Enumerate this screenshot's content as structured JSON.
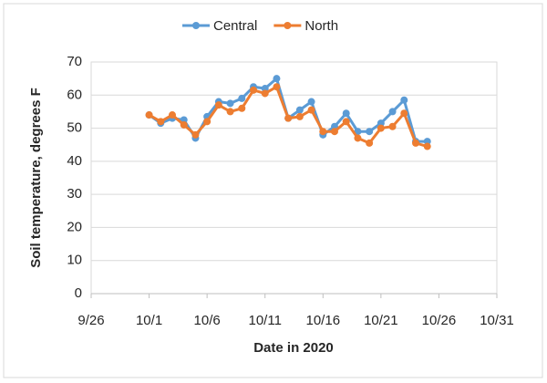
{
  "chart_data": {
    "type": "line",
    "x_label": "Date in 2020",
    "y_label": "Soil temperature, degrees F",
    "x": [
      "10/1",
      "10/2",
      "10/3",
      "10/4",
      "10/5",
      "10/6",
      "10/7",
      "10/8",
      "10/9",
      "10/10",
      "10/11",
      "10/12",
      "10/13",
      "10/14",
      "10/15",
      "10/16",
      "10/17",
      "10/18",
      "10/19",
      "10/20",
      "10/21",
      "10/22",
      "10/23",
      "10/24",
      "10/25"
    ],
    "series": [
      {
        "name": "Central",
        "color": "#5b9bd5",
        "values": [
          54,
          51.5,
          53,
          52.5,
          47,
          53.5,
          58,
          57.5,
          59,
          62.5,
          62,
          65,
          53,
          55.5,
          58,
          48,
          50.5,
          54.5,
          49,
          49,
          51.5,
          55,
          58.5,
          46,
          46
        ]
      },
      {
        "name": "North",
        "color": "#ed7d31",
        "values": [
          54,
          52,
          54,
          51,
          48,
          52,
          57,
          55,
          56,
          61.5,
          60.5,
          62.5,
          53,
          53.5,
          55.5,
          49,
          49,
          52,
          47,
          45.5,
          50,
          50.5,
          54.5,
          45.5,
          44.5
        ]
      }
    ],
    "xlim": [
      "9/26",
      "10/31"
    ],
    "xticks": [
      "9/26",
      "10/1",
      "10/6",
      "10/11",
      "10/16",
      "10/21",
      "10/26",
      "10/31"
    ],
    "ylim": [
      0,
      70
    ],
    "yticks": [
      0,
      10,
      20,
      30,
      40,
      50,
      60,
      70
    ],
    "grid": true,
    "legend": "top"
  }
}
